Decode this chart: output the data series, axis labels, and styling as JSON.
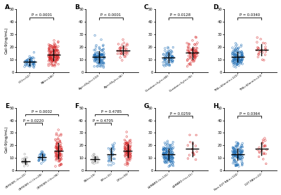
{
  "panels": [
    {
      "label": "A",
      "pvalue": "P < 0.0001",
      "groups": [
        {
          "name": "HC(n=52)",
          "color": "#1f6eb5",
          "n": 52,
          "mean": 7.5,
          "spread": 2.5,
          "low": 3,
          "high": 22
        },
        {
          "name": "RA(n=146)",
          "color": "#d62728",
          "n": 146,
          "mean": 14.0,
          "spread": 5.0,
          "low": 3,
          "high": 43
        }
      ],
      "ylim": [
        0,
        50
      ],
      "yticks": [
        0,
        10,
        20,
        30,
        40,
        50
      ]
    },
    {
      "label": "B",
      "pvalue": "P < 0.0001",
      "groups": [
        {
          "name": "Age<65y(n=110)",
          "color": "#1f6eb5",
          "n": 110,
          "mean": 11.5,
          "spread": 4.5,
          "low": 3,
          "high": 40
        },
        {
          "name": "Age>65y(n=36)",
          "color": "#d62728",
          "n": 36,
          "mean": 17.5,
          "spread": 5.5,
          "low": 3,
          "high": 43
        }
      ],
      "ylim": [
        0,
        50
      ],
      "yticks": [
        0,
        10,
        20,
        30,
        40,
        50
      ]
    },
    {
      "label": "C",
      "pvalue": "P = 0.0128",
      "groups": [
        {
          "name": "Duration<5y(n=68)",
          "color": "#1f6eb5",
          "n": 68,
          "mean": 11.5,
          "spread": 4.0,
          "low": 3,
          "high": 38
        },
        {
          "name": "Duration>5y(n=78)",
          "color": "#d62728",
          "n": 78,
          "mean": 14.5,
          "spread": 5.0,
          "low": 3,
          "high": 43
        }
      ],
      "ylim": [
        0,
        50
      ],
      "yticks": [
        0,
        10,
        20,
        30,
        40,
        50
      ]
    },
    {
      "label": "D",
      "pvalue": "P = 0.0340",
      "groups": [
        {
          "name": "TMS<60min(n=123)",
          "color": "#1f6eb5",
          "n": 123,
          "mean": 12.0,
          "spread": 4.5,
          "low": 3,
          "high": 38
        },
        {
          "name": "TMS>60min(n=23)",
          "color": "#d62728",
          "n": 23,
          "mean": 17.0,
          "spread": 6.0,
          "low": 5,
          "high": 43
        }
      ],
      "ylim": [
        0,
        50
      ],
      "yticks": [
        0,
        10,
        20,
        30,
        40,
        50
      ]
    },
    {
      "label": "E",
      "pvalue2": "P = 0.0002",
      "pvalue1": "P = 0.0220",
      "groups": [
        {
          "name": "CRP/ESR(-)(n=22)",
          "color": "#999999",
          "n": 22,
          "mean": 8.0,
          "spread": 2.5,
          "low": 3,
          "high": 18
        },
        {
          "name": "CRP/ESR(+/-)(n=28)",
          "color": "#1f6eb5",
          "n": 28,
          "mean": 11.0,
          "spread": 4.0,
          "low": 3,
          "high": 30
        },
        {
          "name": "CRP/ESR(+)(n=96)",
          "color": "#d62728",
          "n": 96,
          "mean": 14.5,
          "spread": 5.5,
          "low": 3,
          "high": 43
        }
      ],
      "ylim": [
        0,
        50
      ],
      "yticks": [
        0,
        10,
        20,
        30,
        40,
        50
      ]
    },
    {
      "label": "F",
      "pvalue2": "P = 0.4785",
      "pvalue1": "P = 0.4705",
      "groups": [
        {
          "name": "SN(n=19)",
          "color": "#999999",
          "n": 19,
          "mean": 9.0,
          "spread": 3.0,
          "low": 3,
          "high": 20
        },
        {
          "name": "SP(n=31)",
          "color": "#1f6eb5",
          "n": 31,
          "mean": 13.0,
          "spread": 5.0,
          "low": 3,
          "high": 38
        },
        {
          "name": "DP(n=96)",
          "color": "#d62728",
          "n": 96,
          "mean": 14.5,
          "spread": 5.5,
          "low": 3,
          "high": 43
        }
      ],
      "ylim": [
        0,
        50
      ],
      "yticks": [
        0,
        10,
        20,
        30,
        40,
        50
      ]
    },
    {
      "label": "G",
      "pvalue": "P = 0.0259",
      "groups": [
        {
          "name": "bDMARD-(n=131)",
          "color": "#1f6eb5",
          "n": 131,
          "mean": 12.5,
          "spread": 4.5,
          "low": 3,
          "high": 43
        },
        {
          "name": "bDMARD+(n=15)",
          "color": "#d62728",
          "n": 15,
          "mean": 17.0,
          "spread": 6.0,
          "low": 5,
          "high": 40
        }
      ],
      "ylim": [
        0,
        50
      ],
      "yticks": [
        0,
        10,
        20,
        30,
        40,
        50
      ]
    },
    {
      "label": "H",
      "pvalue": "P = 0.0364",
      "groups": [
        {
          "name": "Non-D2T RA(n=124)",
          "color": "#1f6eb5",
          "n": 124,
          "mean": 13.0,
          "spread": 4.5,
          "low": 3,
          "high": 38
        },
        {
          "name": "D2T RA(n=22)",
          "color": "#d62728",
          "n": 22,
          "mean": 17.0,
          "spread": 6.0,
          "low": 5,
          "high": 43
        }
      ],
      "ylim": [
        0,
        50
      ],
      "yticks": [
        0,
        10,
        20,
        30,
        40,
        50
      ]
    }
  ],
  "ylabel": "Gal-9(ng/mL)",
  "bg_color": "#ffffff"
}
